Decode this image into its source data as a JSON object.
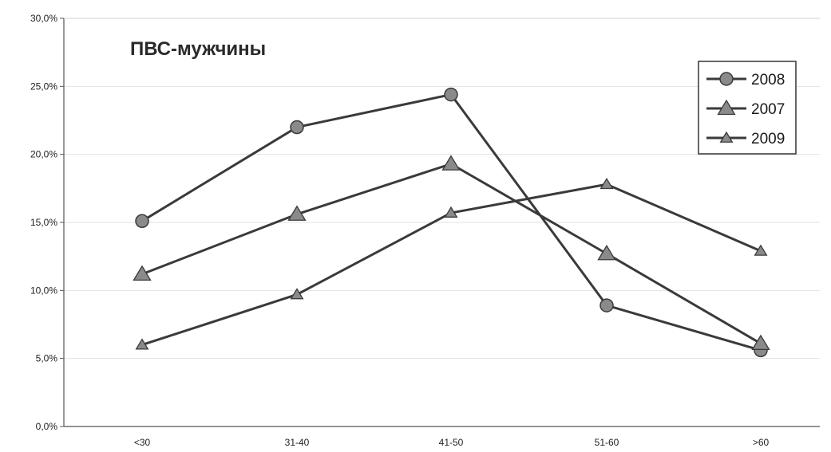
{
  "chart_data": {
    "type": "line",
    "title": "ПВС-мужчины",
    "xlabel": "",
    "ylabel": "",
    "categories": [
      "<30",
      "31-40",
      "41-50",
      "51-60",
      ">60"
    ],
    "ylim": [
      0,
      30
    ],
    "yticks": [
      "0,0%",
      "5,0%",
      "10,0%",
      "15,0%",
      "20,0%",
      "25,0%",
      "30,0%"
    ],
    "ytick_values": [
      0,
      5,
      10,
      15,
      20,
      25,
      30
    ],
    "grid": true,
    "legend_position": "top-right",
    "series": [
      {
        "name": "2008",
        "marker": "circle",
        "values": [
          15.1,
          22.0,
          24.4,
          8.9,
          5.6
        ]
      },
      {
        "name": "2007",
        "marker": "triangle",
        "values": [
          11.2,
          15.6,
          19.3,
          12.7,
          6.1
        ]
      },
      {
        "name": "2009",
        "marker": "triangle-small",
        "values": [
          6.0,
          9.7,
          15.7,
          17.8,
          12.9
        ]
      }
    ],
    "colors": {
      "line": "#3a3a3a",
      "marker_fill": "#8a8a8a",
      "marker_stroke": "#3a3a3a",
      "grid": "#e2e2e2",
      "axis": "#555555",
      "legend_border": "#333333"
    }
  }
}
